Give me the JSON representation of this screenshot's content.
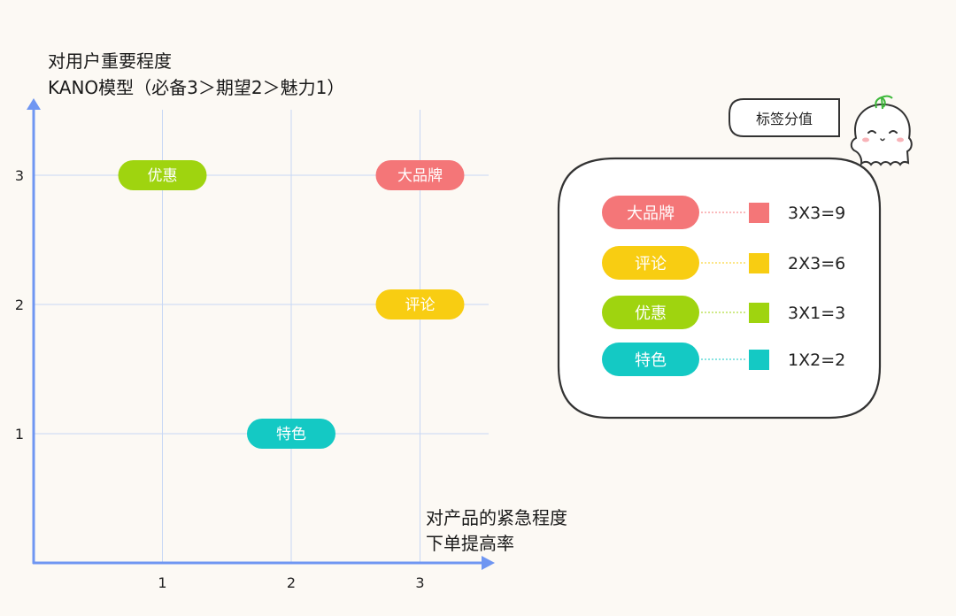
{
  "colors": {
    "background": "#fcf9f4",
    "axis": "#6f96f2",
    "grid": "#c7d7f5",
    "outline": "#333333",
    "brand": "#f47678",
    "review": "#f8cd12",
    "offer": "#9fd40f",
    "feature": "#14c9c4"
  },
  "header": {
    "y_title_line1": "对用户重要程度",
    "y_title_line2": "KANO模型（必备3＞期望2＞魅力1）"
  },
  "footer": {
    "x_title_line1": "对产品的紧急程度",
    "x_title_line2": "下单提高率"
  },
  "chart_data": {
    "type": "scatter",
    "title": "",
    "ylabel": "对用户重要程度\nKANO模型（必备3＞期望2＞魅力1）",
    "xlabel": "对产品的紧急程度\n下单提高率",
    "xlim": [
      0,
      3.5
    ],
    "ylim": [
      0,
      3.5
    ],
    "grid": true,
    "x_ticks": [
      "1",
      "2",
      "3"
    ],
    "y_ticks": [
      "1",
      "2",
      "3"
    ],
    "points": [
      {
        "label": "优惠",
        "x": 1,
        "y": 3,
        "color_key": "offer"
      },
      {
        "label": "大品牌",
        "x": 3,
        "y": 3,
        "color_key": "brand"
      },
      {
        "label": "评论",
        "x": 3,
        "y": 2,
        "color_key": "review"
      },
      {
        "label": "特色",
        "x": 2,
        "y": 1,
        "color_key": "feature"
      }
    ]
  },
  "legend": {
    "tag_title": "标签分值",
    "items": [
      {
        "label": "大品牌",
        "score": "3X3=9",
        "color_key": "brand"
      },
      {
        "label": "评论",
        "score": "2X3=6",
        "color_key": "review"
      },
      {
        "label": "优惠",
        "score": "3X1=3",
        "color_key": "offer"
      },
      {
        "label": "特色",
        "score": "1X2=2",
        "color_key": "feature"
      }
    ]
  },
  "mascot": {
    "icon": "ghost-mascot-icon"
  }
}
